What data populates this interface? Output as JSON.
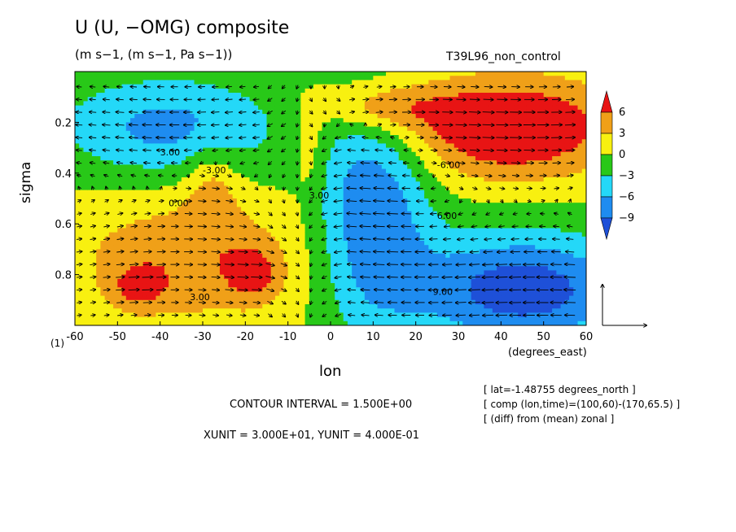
{
  "chart_data": {
    "type": "heatmap",
    "title": "U (U, −OMG) composite",
    "subtitle": "(m s−1, (m s−1, Pa s−1))",
    "run_name": "T39L96_non_control",
    "xlabel": "lon",
    "ylabel": "sigma",
    "x_unit_label": "(degrees_east)",
    "page_label": "(1)",
    "x_ticks": [
      -60,
      -50,
      -40,
      -30,
      -20,
      -10,
      0,
      10,
      20,
      30,
      40,
      50,
      60
    ],
    "y_ticks": [
      0.2,
      0.4,
      0.6,
      0.8
    ],
    "xlim": [
      -60,
      60
    ],
    "ylim": [
      1.0,
      0.0
    ],
    "colorbar": {
      "labels": [
        "6",
        "3",
        "0",
        "−3",
        "−6",
        "−9"
      ],
      "levels": [
        -12,
        -9,
        -6,
        -3,
        0,
        3,
        6,
        9
      ],
      "colors": [
        "#1e50d8",
        "#1e8cf0",
        "#24d8f8",
        "#28c818",
        "#f8f010",
        "#f0a018",
        "#e81414"
      ]
    },
    "contour_labels": [
      "3.00",
      "-3.00",
      "0.00",
      "-6.00",
      "6.00",
      "9.00",
      "3.00",
      "3.00"
    ],
    "regions": [
      {
        "name": "upper-west negative",
        "lon": [
          -60,
          -5
        ],
        "sigma": [
          0.05,
          0.45
        ],
        "value": -6
      },
      {
        "name": "mid-west positive",
        "lon": [
          -60,
          -5
        ],
        "sigma": [
          0.5,
          1.0
        ],
        "value": 3
      },
      {
        "name": "maximum -45",
        "lon": [
          -45,
          -45
        ],
        "sigma": [
          0.85,
          0.85
        ],
        "value": 7
      },
      {
        "name": "maximum -18",
        "lon": [
          -18,
          -18
        ],
        "sigma": [
          0.8,
          0.8
        ],
        "value": 7
      },
      {
        "name": "central negative",
        "lon": [
          0,
          25
        ],
        "sigma": [
          0.2,
          1.0
        ],
        "value": -7
      },
      {
        "name": "upper-east positive",
        "lon": [
          15,
          60
        ],
        "sigma": [
          0.05,
          0.5
        ],
        "value": 7
      },
      {
        "name": "lower-east negative",
        "lon": [
          25,
          60
        ],
        "sigma": [
          0.6,
          1.0
        ],
        "value": -10
      }
    ],
    "contour_interval": "CONTOUR INTERVAL = 1.500E+00",
    "vector_units": "XUNIT = 3.000E+01, YUNIT = 4.000E-01"
  },
  "notes": [
    "[ lat=-1.48755 degrees_north ]",
    "[ comp (lon,time)=(100,60)-(170,65.5) ]",
    "[ (diff) from (mean) zonal ]"
  ]
}
